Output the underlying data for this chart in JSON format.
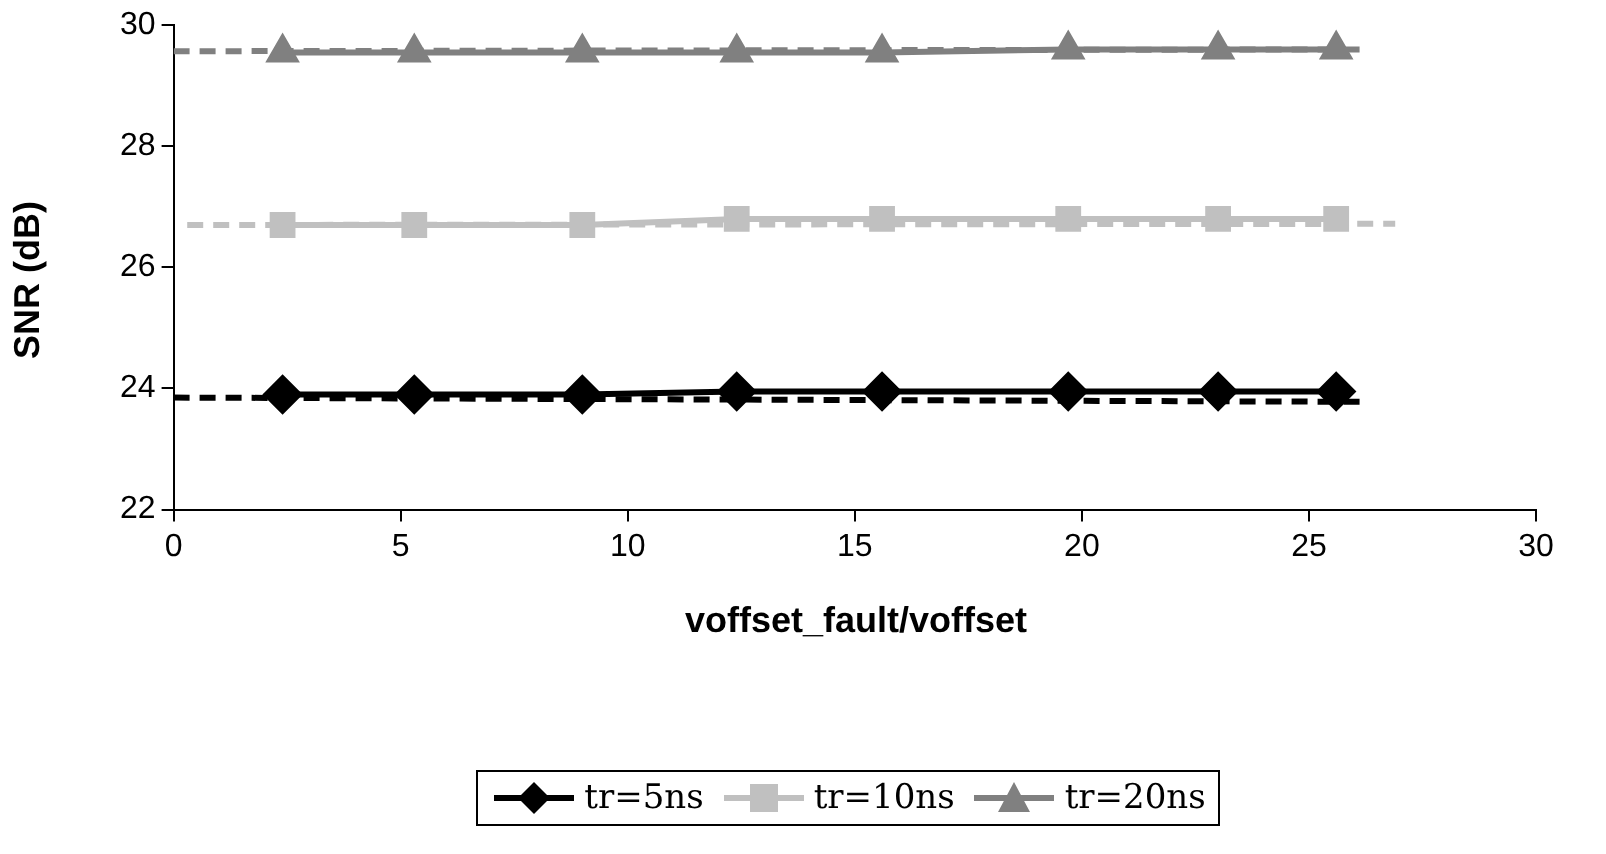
{
  "chart_data": {
    "type": "line",
    "xlabel": "voffset_fault/voffset",
    "ylabel": "SNR (dB)",
    "x": [
      2.4,
      5.3,
      9,
      12.4,
      15.6,
      19.7,
      23,
      25.6
    ],
    "xlim": [
      0,
      30
    ],
    "xticks": [
      0,
      5,
      10,
      15,
      20,
      25,
      30
    ],
    "ylim": [
      22,
      30
    ],
    "yticks": [
      22,
      24,
      26,
      28,
      30
    ],
    "grid": false,
    "legend": "bottom",
    "series": [
      {
        "name": "tr=5ns",
        "color": "#000000",
        "marker": "diamond",
        "values": [
          23.9,
          23.9,
          23.9,
          23.95,
          23.95,
          23.95,
          23.95,
          23.95
        ]
      },
      {
        "name": "tr=10ns",
        "color": "#c0c0c0",
        "marker": "square",
        "values": [
          26.7,
          26.7,
          26.7,
          26.8,
          26.8,
          26.8,
          26.8,
          26.8
        ]
      },
      {
        "name": "tr=20ns",
        "color": "#808080",
        "marker": "triangle",
        "values": [
          29.55,
          29.55,
          29.55,
          29.55,
          29.55,
          29.6,
          29.6,
          29.6
        ]
      },
      {
        "type": "line",
        "color": "#000000",
        "marker": "none",
        "line_style": "dashed",
        "x": [
          0,
          26.2
        ],
        "values": [
          23.85,
          23.78
        ]
      },
      {
        "type": "line",
        "color": "#c0c0c0",
        "marker": "none",
        "line_style": "dashed",
        "x": [
          0.3,
          26.9
        ],
        "values": [
          26.7,
          26.72
        ]
      },
      {
        "type": "line",
        "color": "#808080",
        "marker": "none",
        "line_style": "dashed",
        "x": [
          0,
          26.2
        ],
        "values": [
          29.57,
          29.6
        ]
      }
    ]
  }
}
